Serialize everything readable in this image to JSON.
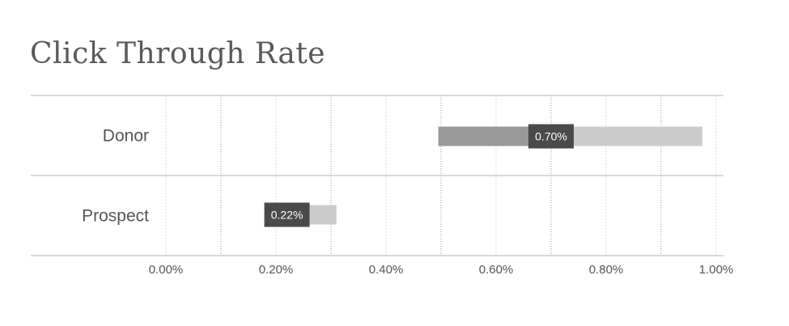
{
  "chart_data": {
    "type": "bar",
    "title": "Click Through Rate",
    "xlabel": "",
    "ylabel": "",
    "orientation": "horizontal",
    "categories": [
      "Donor",
      "Prospect"
    ],
    "xlim": [
      0,
      1
    ],
    "x_ticks": [
      0,
      0.2,
      0.4,
      0.6,
      0.8,
      1.0
    ],
    "x_tick_labels": [
      "0.00%",
      "0.20%",
      "0.40%",
      "0.60%",
      "0.80%",
      "1.00%"
    ],
    "grid": true,
    "ranges": [
      {
        "category": "Donor",
        "low": 0.495,
        "mid": 0.7,
        "high": 0.975
      },
      {
        "category": "Prospect",
        "low": 0.19,
        "mid": 0.22,
        "high": 0.31
      }
    ],
    "data_labels": [
      "0.70%",
      "0.22%"
    ],
    "colors": {
      "lower_segment": "#999999",
      "upper_segment": "#cccccc",
      "label_box": "#4a4a4a",
      "axis_line": "#b3b3b3",
      "major_grid": "#999999",
      "minor_grid": "#dddddd"
    }
  }
}
